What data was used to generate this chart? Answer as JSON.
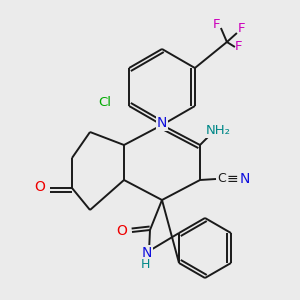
{
  "background_color": "#ebebeb",
  "figsize": [
    3.0,
    3.0
  ],
  "dpi": 100,
  "bond_color": "#1a1a1a",
  "bond_width": 1.4,
  "colors": {
    "N": "#1010dd",
    "O": "#ee0000",
    "F": "#cc00bb",
    "Cl": "#00aa00",
    "NH": "#008888",
    "C": "#1a1a1a"
  }
}
